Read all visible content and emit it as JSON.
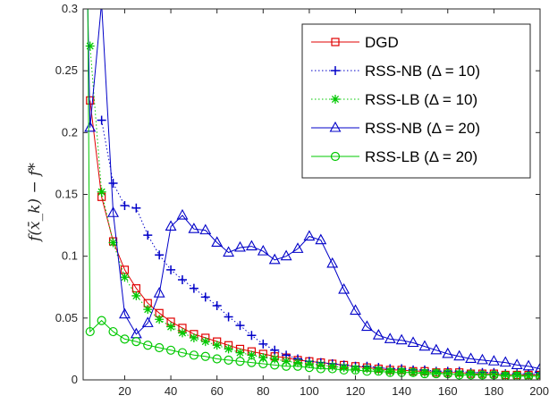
{
  "chart_data": {
    "type": "line",
    "title": "",
    "xlabel": "",
    "ylabel": "f(x̄_k) − f*",
    "xlim": [
      2,
      200
    ],
    "ylim": [
      0,
      0.3
    ],
    "x_ticks": [
      20,
      40,
      60,
      80,
      100,
      120,
      140,
      160,
      180,
      200
    ],
    "x_tick_labels": [
      "20",
      "40",
      "60",
      "80",
      "100",
      "120",
      "140",
      "160",
      "180",
      "200"
    ],
    "y_ticks": [
      0,
      0.05,
      0.1,
      0.15,
      0.2,
      0.25,
      0.3
    ],
    "y_tick_labels": [
      "0",
      "0.05",
      "0.1",
      "0.15",
      "0.2",
      "0.25",
      "0.3"
    ],
    "grid": false,
    "legend_position": "top-right",
    "series": [
      {
        "name": "DGD",
        "color": "#e00000",
        "line": "solid",
        "marker": "square",
        "x": [
          5,
          10,
          15,
          20,
          25,
          30,
          35,
          40,
          45,
          50,
          55,
          60,
          65,
          70,
          75,
          80,
          85,
          90,
          95,
          100,
          105,
          110,
          115,
          120,
          125,
          130,
          135,
          140,
          145,
          150,
          155,
          160,
          165,
          170,
          175,
          180,
          185,
          190,
          195,
          200
        ],
        "y": [
          0.226,
          0.148,
          0.112,
          0.089,
          0.074,
          0.062,
          0.054,
          0.047,
          0.042,
          0.037,
          0.034,
          0.031,
          0.028,
          0.025,
          0.023,
          0.021,
          0.019,
          0.018,
          0.016,
          0.015,
          0.014,
          0.013,
          0.012,
          0.011,
          0.01,
          0.009,
          0.008,
          0.008,
          0.007,
          0.007,
          0.006,
          0.006,
          0.006,
          0.005,
          0.005,
          0.005,
          0.004,
          0.004,
          0.004,
          0.004
        ]
      },
      {
        "name": "RSS-NB (Δ = 10)",
        "color": "#0000c8",
        "line": "dotted",
        "marker": "plus",
        "x": [
          10,
          15,
          20,
          25,
          30,
          35,
          40,
          45,
          50,
          55,
          60,
          65,
          70,
          75,
          80,
          85,
          90,
          95,
          100,
          105,
          110,
          115,
          120,
          125,
          130,
          135,
          140,
          145,
          150,
          155,
          160,
          165,
          170,
          175,
          180,
          185,
          190,
          195,
          200
        ],
        "y": [
          0.21,
          0.159,
          0.141,
          0.139,
          0.117,
          0.101,
          0.089,
          0.081,
          0.074,
          0.067,
          0.06,
          0.051,
          0.044,
          0.036,
          0.029,
          0.024,
          0.02,
          0.017,
          0.015,
          0.014,
          0.013,
          0.012,
          0.011,
          0.011,
          0.01,
          0.009,
          0.009,
          0.008,
          0.008,
          0.007,
          0.007,
          0.007,
          0.006,
          0.006,
          0.006,
          0.005,
          0.005,
          0.005,
          0.005
        ]
      },
      {
        "name": "RSS-LB (Δ = 10)",
        "color": "#00c800",
        "line": "dotted",
        "marker": "asterisk",
        "x": [
          5,
          10,
          15,
          20,
          25,
          30,
          35,
          40,
          45,
          50,
          55,
          60,
          65,
          70,
          75,
          80,
          85,
          90,
          95,
          100,
          105,
          110,
          115,
          120,
          125,
          130,
          135,
          140,
          145,
          150,
          155,
          160,
          165,
          170,
          175,
          180,
          185,
          190,
          195,
          200
        ],
        "y": [
          0.27,
          0.152,
          0.111,
          0.083,
          0.068,
          0.057,
          0.049,
          0.043,
          0.038,
          0.034,
          0.031,
          0.028,
          0.025,
          0.022,
          0.02,
          0.018,
          0.017,
          0.015,
          0.014,
          0.013,
          0.012,
          0.011,
          0.01,
          0.009,
          0.009,
          0.008,
          0.007,
          0.007,
          0.006,
          0.006,
          0.006,
          0.005,
          0.005,
          0.005,
          0.004,
          0.004,
          0.004,
          0.004,
          0.003,
          0.003
        ]
      },
      {
        "name": "RSS-NB (Δ = 20)",
        "color": "#0000c8",
        "line": "solid",
        "marker": "triangle",
        "x": [
          2,
          4,
          5,
          10,
          15,
          20,
          25,
          30,
          35,
          40,
          45,
          50,
          55,
          60,
          65,
          70,
          75,
          80,
          85,
          90,
          95,
          100,
          105,
          110,
          115,
          120,
          125,
          130,
          135,
          140,
          145,
          150,
          155,
          160,
          165,
          170,
          175,
          180,
          185,
          190,
          195,
          200
        ],
        "y": [
          0.3,
          0.3,
          0.204,
          0.305,
          0.135,
          0.053,
          0.037,
          0.046,
          0.07,
          0.124,
          0.133,
          0.122,
          0.121,
          0.111,
          0.103,
          0.107,
          0.108,
          0.104,
          0.097,
          0.1,
          0.106,
          0.116,
          0.113,
          0.094,
          0.073,
          0.056,
          0.043,
          0.036,
          0.033,
          0.032,
          0.03,
          0.027,
          0.024,
          0.021,
          0.019,
          0.017,
          0.016,
          0.015,
          0.014,
          0.012,
          0.011,
          0.009
        ]
      },
      {
        "name": "RSS-LB (Δ = 20)",
        "color": "#00c800",
        "line": "solid",
        "marker": "circle",
        "x": [
          2,
          4,
          5,
          10,
          15,
          20,
          25,
          30,
          35,
          40,
          45,
          50,
          55,
          60,
          65,
          70,
          75,
          80,
          85,
          90,
          95,
          100,
          105,
          110,
          115,
          120,
          125,
          130,
          135,
          140,
          145,
          150,
          155,
          160,
          165,
          170,
          175,
          180,
          185,
          190,
          195,
          200
        ],
        "y": [
          0.3,
          0.3,
          0.039,
          0.048,
          0.039,
          0.033,
          0.031,
          0.028,
          0.026,
          0.024,
          0.022,
          0.02,
          0.019,
          0.017,
          0.016,
          0.015,
          0.014,
          0.013,
          0.012,
          0.011,
          0.011,
          0.01,
          0.009,
          0.009,
          0.008,
          0.008,
          0.007,
          0.007,
          0.006,
          0.006,
          0.006,
          0.005,
          0.005,
          0.005,
          0.004,
          0.004,
          0.004,
          0.004,
          0.003,
          0.003,
          0.003,
          0.003
        ]
      }
    ]
  }
}
